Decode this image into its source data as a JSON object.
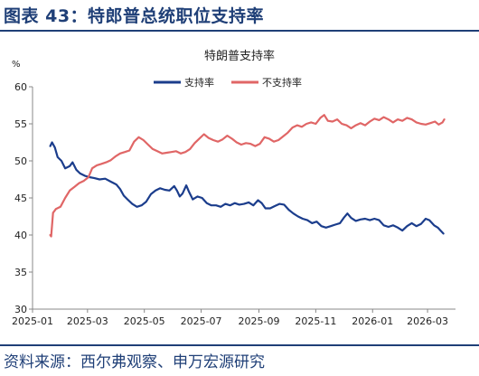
{
  "figure": {
    "title": "图表 43：特郎普总统职位支持率",
    "source": "资料来源：西尔弗观察、申万宏源研究"
  },
  "colors": {
    "accent": "#1f3f77",
    "support": "#1b3d8c",
    "oppose": "#e06666"
  },
  "chart_data": {
    "type": "line",
    "title": "特朗普支持率",
    "ylabel": "%",
    "xlabel": "",
    "ylim": [
      30,
      60
    ],
    "yticks": [
      30,
      35,
      40,
      45,
      50,
      55,
      60
    ],
    "xlim": [
      "2025-01-01",
      "2026-03-31"
    ],
    "xticks": [
      "2025-01",
      "2025-03",
      "2025-05",
      "2025-07",
      "2025-09",
      "2025-11",
      "2026-01",
      "2026-03"
    ],
    "grid": false,
    "legend": "top-center",
    "series": [
      {
        "name": "支持率",
        "color": "#1b3d8c",
        "points": [
          [
            "2025-01-20",
            52.0
          ],
          [
            "2025-01-22",
            52.5
          ],
          [
            "2025-01-25",
            51.8
          ],
          [
            "2025-01-28",
            50.5
          ],
          [
            "2025-02-01",
            50.0
          ],
          [
            "2025-02-05",
            49.0
          ],
          [
            "2025-02-10",
            49.3
          ],
          [
            "2025-02-13",
            49.8
          ],
          [
            "2025-02-17",
            48.8
          ],
          [
            "2025-02-21",
            48.3
          ],
          [
            "2025-02-26",
            48.0
          ],
          [
            "2025-03-03",
            47.8
          ],
          [
            "2025-03-08",
            47.7
          ],
          [
            "2025-03-14",
            47.5
          ],
          [
            "2025-03-20",
            47.6
          ],
          [
            "2025-03-26",
            47.2
          ],
          [
            "2025-04-01",
            46.8
          ],
          [
            "2025-04-05",
            46.2
          ],
          [
            "2025-04-09",
            45.3
          ],
          [
            "2025-04-13",
            44.8
          ],
          [
            "2025-04-18",
            44.2
          ],
          [
            "2025-04-23",
            43.8
          ],
          [
            "2025-04-28",
            44.0
          ],
          [
            "2025-05-03",
            44.5
          ],
          [
            "2025-05-08",
            45.5
          ],
          [
            "2025-05-13",
            46.0
          ],
          [
            "2025-05-18",
            46.3
          ],
          [
            "2025-05-23",
            46.1
          ],
          [
            "2025-05-28",
            46.0
          ],
          [
            "2025-06-02",
            46.6
          ],
          [
            "2025-06-05",
            46.0
          ],
          [
            "2025-06-08",
            45.2
          ],
          [
            "2025-06-11",
            45.6
          ],
          [
            "2025-06-15",
            46.7
          ],
          [
            "2025-06-18",
            45.8
          ],
          [
            "2025-06-22",
            44.8
          ],
          [
            "2025-06-27",
            45.2
          ],
          [
            "2025-07-02",
            45.0
          ],
          [
            "2025-07-07",
            44.3
          ],
          [
            "2025-07-12",
            44.0
          ],
          [
            "2025-07-17",
            44.0
          ],
          [
            "2025-07-22",
            43.8
          ],
          [
            "2025-07-27",
            44.2
          ],
          [
            "2025-08-01",
            44.0
          ],
          [
            "2025-08-06",
            44.3
          ],
          [
            "2025-08-11",
            44.1
          ],
          [
            "2025-08-16",
            44.2
          ],
          [
            "2025-08-21",
            44.4
          ],
          [
            "2025-08-26",
            44.0
          ],
          [
            "2025-08-31",
            44.7
          ],
          [
            "2025-09-04",
            44.3
          ],
          [
            "2025-09-08",
            43.6
          ],
          [
            "2025-09-13",
            43.6
          ],
          [
            "2025-09-18",
            43.9
          ],
          [
            "2025-09-23",
            44.2
          ],
          [
            "2025-09-28",
            44.1
          ],
          [
            "2025-10-03",
            43.4
          ],
          [
            "2025-10-08",
            42.9
          ],
          [
            "2025-10-13",
            42.5
          ],
          [
            "2025-10-18",
            42.2
          ],
          [
            "2025-10-23",
            42.0
          ],
          [
            "2025-10-28",
            41.6
          ],
          [
            "2025-11-02",
            41.8
          ],
          [
            "2025-11-07",
            41.2
          ],
          [
            "2025-11-12",
            41.0
          ],
          [
            "2025-11-17",
            41.2
          ],
          [
            "2025-11-22",
            41.4
          ],
          [
            "2025-11-27",
            41.6
          ],
          [
            "2025-12-01",
            42.3
          ],
          [
            "2025-12-05",
            42.9
          ],
          [
            "2025-12-09",
            42.3
          ],
          [
            "2025-12-14",
            41.9
          ],
          [
            "2025-12-19",
            42.1
          ],
          [
            "2025-12-24",
            42.2
          ],
          [
            "2025-12-29",
            42.0
          ],
          [
            "2026-01-03",
            42.2
          ],
          [
            "2026-01-08",
            42.0
          ],
          [
            "2026-01-13",
            41.3
          ],
          [
            "2026-01-18",
            41.1
          ],
          [
            "2026-01-23",
            41.3
          ],
          [
            "2026-01-28",
            41.0
          ],
          [
            "2026-02-02",
            40.6
          ],
          [
            "2026-02-07",
            41.2
          ],
          [
            "2026-02-12",
            41.6
          ],
          [
            "2026-02-17",
            41.2
          ],
          [
            "2026-02-22",
            41.5
          ],
          [
            "2026-02-27",
            42.2
          ],
          [
            "2026-03-03",
            42.0
          ],
          [
            "2026-03-08",
            41.3
          ],
          [
            "2026-03-12",
            41.0
          ],
          [
            "2026-03-15",
            40.6
          ],
          [
            "2026-03-18",
            40.2
          ]
        ]
      },
      {
        "name": "不支持率",
        "color": "#e06666",
        "points": [
          [
            "2025-01-20",
            40.0
          ],
          [
            "2025-01-21",
            39.8
          ],
          [
            "2025-01-23",
            43.0
          ],
          [
            "2025-01-26",
            43.5
          ],
          [
            "2025-01-31",
            43.8
          ],
          [
            "2025-02-05",
            45.0
          ],
          [
            "2025-02-10",
            46.0
          ],
          [
            "2025-02-15",
            46.5
          ],
          [
            "2025-02-20",
            47.0
          ],
          [
            "2025-02-25",
            47.3
          ],
          [
            "2025-03-02",
            47.8
          ],
          [
            "2025-03-06",
            49.0
          ],
          [
            "2025-03-11",
            49.4
          ],
          [
            "2025-03-16",
            49.6
          ],
          [
            "2025-03-21",
            49.8
          ],
          [
            "2025-03-26",
            50.1
          ],
          [
            "2025-03-31",
            50.6
          ],
          [
            "2025-04-05",
            51.0
          ],
          [
            "2025-04-10",
            51.2
          ],
          [
            "2025-04-15",
            51.4
          ],
          [
            "2025-04-20",
            52.6
          ],
          [
            "2025-04-25",
            53.2
          ],
          [
            "2025-04-30",
            52.8
          ],
          [
            "2025-05-05",
            52.2
          ],
          [
            "2025-05-10",
            51.6
          ],
          [
            "2025-05-15",
            51.3
          ],
          [
            "2025-05-20",
            51.0
          ],
          [
            "2025-05-25",
            51.1
          ],
          [
            "2025-05-30",
            51.2
          ],
          [
            "2025-06-04",
            51.3
          ],
          [
            "2025-06-09",
            51.0
          ],
          [
            "2025-06-14",
            51.2
          ],
          [
            "2025-06-19",
            51.6
          ],
          [
            "2025-06-24",
            52.4
          ],
          [
            "2025-06-29",
            53.0
          ],
          [
            "2025-07-04",
            53.6
          ],
          [
            "2025-07-09",
            53.1
          ],
          [
            "2025-07-14",
            52.8
          ],
          [
            "2025-07-19",
            52.6
          ],
          [
            "2025-07-24",
            52.9
          ],
          [
            "2025-07-29",
            53.4
          ],
          [
            "2025-08-03",
            53.0
          ],
          [
            "2025-08-08",
            52.5
          ],
          [
            "2025-08-13",
            52.2
          ],
          [
            "2025-08-18",
            52.4
          ],
          [
            "2025-08-23",
            52.3
          ],
          [
            "2025-08-28",
            52.0
          ],
          [
            "2025-09-02",
            52.3
          ],
          [
            "2025-09-07",
            53.2
          ],
          [
            "2025-09-12",
            53.0
          ],
          [
            "2025-09-17",
            52.6
          ],
          [
            "2025-09-22",
            52.8
          ],
          [
            "2025-09-27",
            53.3
          ],
          [
            "2025-10-02",
            53.8
          ],
          [
            "2025-10-07",
            54.5
          ],
          [
            "2025-10-12",
            54.8
          ],
          [
            "2025-10-17",
            54.6
          ],
          [
            "2025-10-22",
            55.0
          ],
          [
            "2025-10-27",
            55.2
          ],
          [
            "2025-11-01",
            55.0
          ],
          [
            "2025-11-06",
            55.8
          ],
          [
            "2025-11-10",
            56.2
          ],
          [
            "2025-11-14",
            55.4
          ],
          [
            "2025-11-19",
            55.3
          ],
          [
            "2025-11-24",
            55.6
          ],
          [
            "2025-11-29",
            55.0
          ],
          [
            "2025-12-04",
            54.8
          ],
          [
            "2025-12-09",
            54.4
          ],
          [
            "2025-12-14",
            54.8
          ],
          [
            "2025-12-19",
            55.1
          ],
          [
            "2025-12-24",
            54.8
          ],
          [
            "2025-12-29",
            55.3
          ],
          [
            "2026-01-03",
            55.7
          ],
          [
            "2026-01-08",
            55.5
          ],
          [
            "2026-01-13",
            55.9
          ],
          [
            "2026-01-18",
            55.6
          ],
          [
            "2026-01-23",
            55.2
          ],
          [
            "2026-01-28",
            55.6
          ],
          [
            "2026-02-02",
            55.4
          ],
          [
            "2026-02-07",
            55.8
          ],
          [
            "2026-02-12",
            55.6
          ],
          [
            "2026-02-17",
            55.2
          ],
          [
            "2026-02-22",
            55.0
          ],
          [
            "2026-02-27",
            54.9
          ],
          [
            "2026-03-04",
            55.1
          ],
          [
            "2026-03-09",
            55.3
          ],
          [
            "2026-03-13",
            54.9
          ],
          [
            "2026-03-17",
            55.2
          ],
          [
            "2026-03-19",
            55.6
          ]
        ]
      }
    ]
  }
}
